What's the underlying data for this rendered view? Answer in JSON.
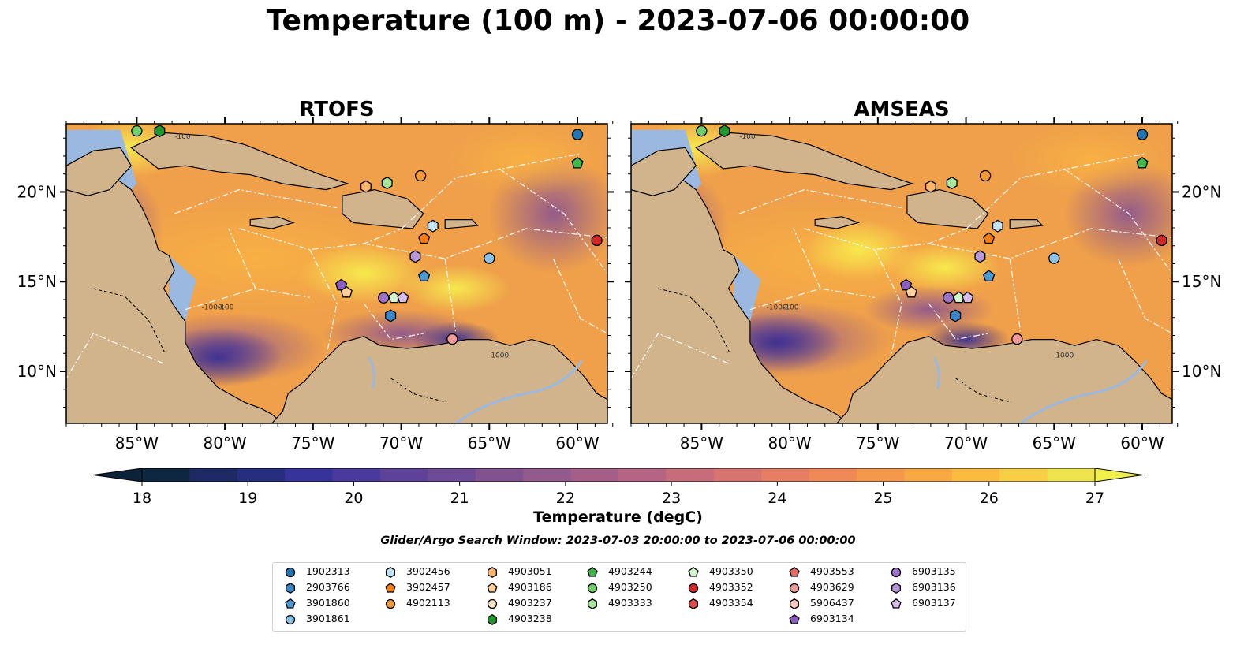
{
  "title": "Temperature (100 m) - 2023-07-06 00:00:00",
  "panels": [
    {
      "name": "RTOFS"
    },
    {
      "name": "AMSEAS"
    }
  ],
  "axes": {
    "lon_ticks": [
      "85°W",
      "80°W",
      "75°W",
      "70°W",
      "65°W",
      "60°W"
    ],
    "lon_values": [
      -85,
      -80,
      -75,
      -70,
      -65,
      -60
    ],
    "lat_ticks": [
      "10°N",
      "15°N",
      "20°N"
    ],
    "lat_values": [
      10,
      15,
      20
    ],
    "lon_range": [
      -89,
      -58.3
    ],
    "lat_range": [
      7.1,
      23.8
    ]
  },
  "colorbar": {
    "label": "Temperature (degC)",
    "ticks": [
      "18",
      "19",
      "20",
      "21",
      "22",
      "23",
      "24",
      "25",
      "26",
      "27"
    ],
    "range": [
      18,
      27
    ],
    "colors": [
      "#0d2740",
      "#1d2a63",
      "#262e80",
      "#36349a",
      "#4a3a9e",
      "#5e4299",
      "#704b95",
      "#815190",
      "#925a8d",
      "#a45f88",
      "#b66483",
      "#c86b7b",
      "#d87470",
      "#e57e63",
      "#ef8a57",
      "#f6984c",
      "#f9a944",
      "#fabb40",
      "#f7cf46",
      "#f0e44e"
    ]
  },
  "contour_labels": [
    "-100",
    "-1000"
  ],
  "search_window": "Glider/Argo Search Window: 2023-07-03 20:00:00 to 2023-07-06 00:00:00",
  "legend": [
    {
      "id": "1902313",
      "marker": "circle",
      "color": "#1f77b4"
    },
    {
      "id": "2903766",
      "marker": "hexagon",
      "color": "#3a86c8"
    },
    {
      "id": "3901860",
      "marker": "pentagon",
      "color": "#4a9ad8"
    },
    {
      "id": "3901861",
      "marker": "circle",
      "color": "#8cc3ea"
    },
    {
      "id": "3902456",
      "marker": "hexagon",
      "color": "#c4e2f6"
    },
    {
      "id": "3902457",
      "marker": "pentagon",
      "color": "#f57d14"
    },
    {
      "id": "4902113",
      "marker": "circle",
      "color": "#f59a35"
    },
    {
      "id": "4903051",
      "marker": "hexagon",
      "color": "#fbb66a"
    },
    {
      "id": "4903186",
      "marker": "pentagon",
      "color": "#fdcf9a"
    },
    {
      "id": "4903237",
      "marker": "circle",
      "color": "#fde3c6"
    },
    {
      "id": "4903238",
      "marker": "hexagon",
      "color": "#1e9a2c"
    },
    {
      "id": "4903244",
      "marker": "pentagon",
      "color": "#3db84a"
    },
    {
      "id": "4903250",
      "marker": "circle",
      "color": "#6fd06a"
    },
    {
      "id": "4903333",
      "marker": "hexagon",
      "color": "#a6e89c"
    },
    {
      "id": "4903350",
      "marker": "pentagon",
      "color": "#d2f7cc"
    },
    {
      "id": "4903352",
      "marker": "circle",
      "color": "#d62728"
    },
    {
      "id": "4903354",
      "marker": "hexagon",
      "color": "#e04a4a"
    },
    {
      "id": "4903553",
      "marker": "pentagon",
      "color": "#ea6a6a"
    },
    {
      "id": "4903629",
      "marker": "circle",
      "color": "#f29a98"
    },
    {
      "id": "5906437",
      "marker": "hexagon",
      "color": "#f9c6c4"
    },
    {
      "id": "6903134",
      "marker": "pentagon",
      "color": "#8a5ec0"
    },
    {
      "id": "6903135",
      "marker": "circle",
      "color": "#9c72cc"
    },
    {
      "id": "6903136",
      "marker": "hexagon",
      "color": "#b896dc"
    },
    {
      "id": "6903137",
      "marker": "pentagon",
      "color": "#d6bdee"
    }
  ],
  "floats": [
    {
      "id": "4903250",
      "lon": -85.0,
      "lat": 23.4
    },
    {
      "id": "4903238",
      "lon": -83.7,
      "lat": 23.4
    },
    {
      "id": "1902313",
      "lon": -60.0,
      "lat": 23.2
    },
    {
      "id": "4903244",
      "lon": -60.0,
      "lat": 21.6
    },
    {
      "id": "4902113",
      "lon": -68.9,
      "lat": 20.9
    },
    {
      "id": "4903333",
      "lon": -70.8,
      "lat": 20.5
    },
    {
      "id": "4903051",
      "lon": -72.0,
      "lat": 20.3
    },
    {
      "id": "3902456",
      "lon": -68.2,
      "lat": 18.1
    },
    {
      "id": "3902457",
      "lon": -68.7,
      "lat": 17.4
    },
    {
      "id": "4903352",
      "lon": -58.9,
      "lat": 17.3
    },
    {
      "id": "6903136",
      "lon": -69.2,
      "lat": 16.4
    },
    {
      "id": "3901861",
      "lon": -65.0,
      "lat": 16.3
    },
    {
      "id": "3901860",
      "lon": -68.7,
      "lat": 15.3
    },
    {
      "id": "6903134",
      "lon": -73.4,
      "lat": 14.8
    },
    {
      "id": "4903186",
      "lon": -73.1,
      "lat": 14.4
    },
    {
      "id": "6903135",
      "lon": -71.0,
      "lat": 14.1
    },
    {
      "id": "4903350",
      "lon": -70.4,
      "lat": 14.1
    },
    {
      "id": "6903137",
      "lon": -69.9,
      "lat": 14.1
    },
    {
      "id": "2903766",
      "lon": -70.6,
      "lat": 13.1
    },
    {
      "id": "4903629",
      "lon": -67.1,
      "lat": 11.8
    }
  ]
}
